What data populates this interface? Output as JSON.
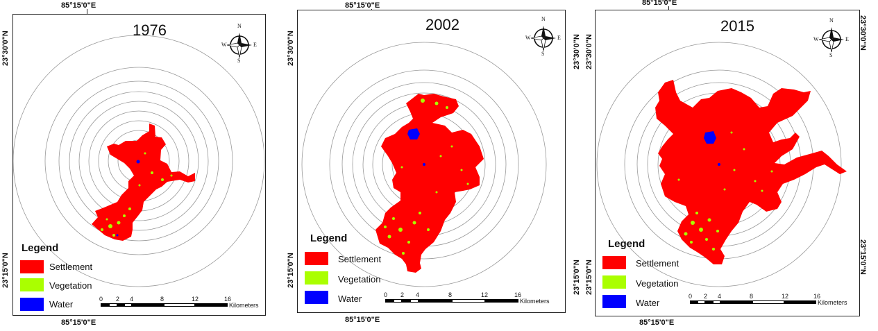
{
  "colors": {
    "settlement": "#ff0000",
    "vegetation": "#aaff00",
    "water": "#0000ff"
  },
  "compass": {
    "n": "N",
    "s": "S",
    "e": "E",
    "w": "W"
  },
  "legend": {
    "title": "Legend",
    "items": [
      {
        "label": "Settlement",
        "color": "#ff0000"
      },
      {
        "label": "Vegetation",
        "color": "#aaff00"
      },
      {
        "label": "Water",
        "color": "#0000ff"
      }
    ]
  },
  "scale": {
    "labels": [
      "0",
      "2",
      "4",
      "8",
      "12",
      "16"
    ],
    "unit": "Kilometers"
  },
  "maps": [
    {
      "year": "1976",
      "top_lon": "85°15'0\"E",
      "bottom_lon": "85°15'0\"E",
      "left_lat_top": "23°30'0\"N",
      "left_lat_bottom": "23°15'0\"N"
    },
    {
      "year": "2002",
      "top_lon": "85°15'0\"E",
      "bottom_lon": "85°15'0\"E",
      "left_lat_top": "23°30'0\"N",
      "left_lat_bottom": "23°15'0\"N"
    },
    {
      "year": "2015",
      "top_lon": "85°15'0\"E",
      "bottom_lon": "85°15'0\"E",
      "left_lat_top": "23°30'0\"N",
      "left_lat_bottom": "23°15'0\"N",
      "right_lat_top": "23°30'0\"N",
      "right_lat_bottom": "23°15'0\"N"
    }
  ]
}
